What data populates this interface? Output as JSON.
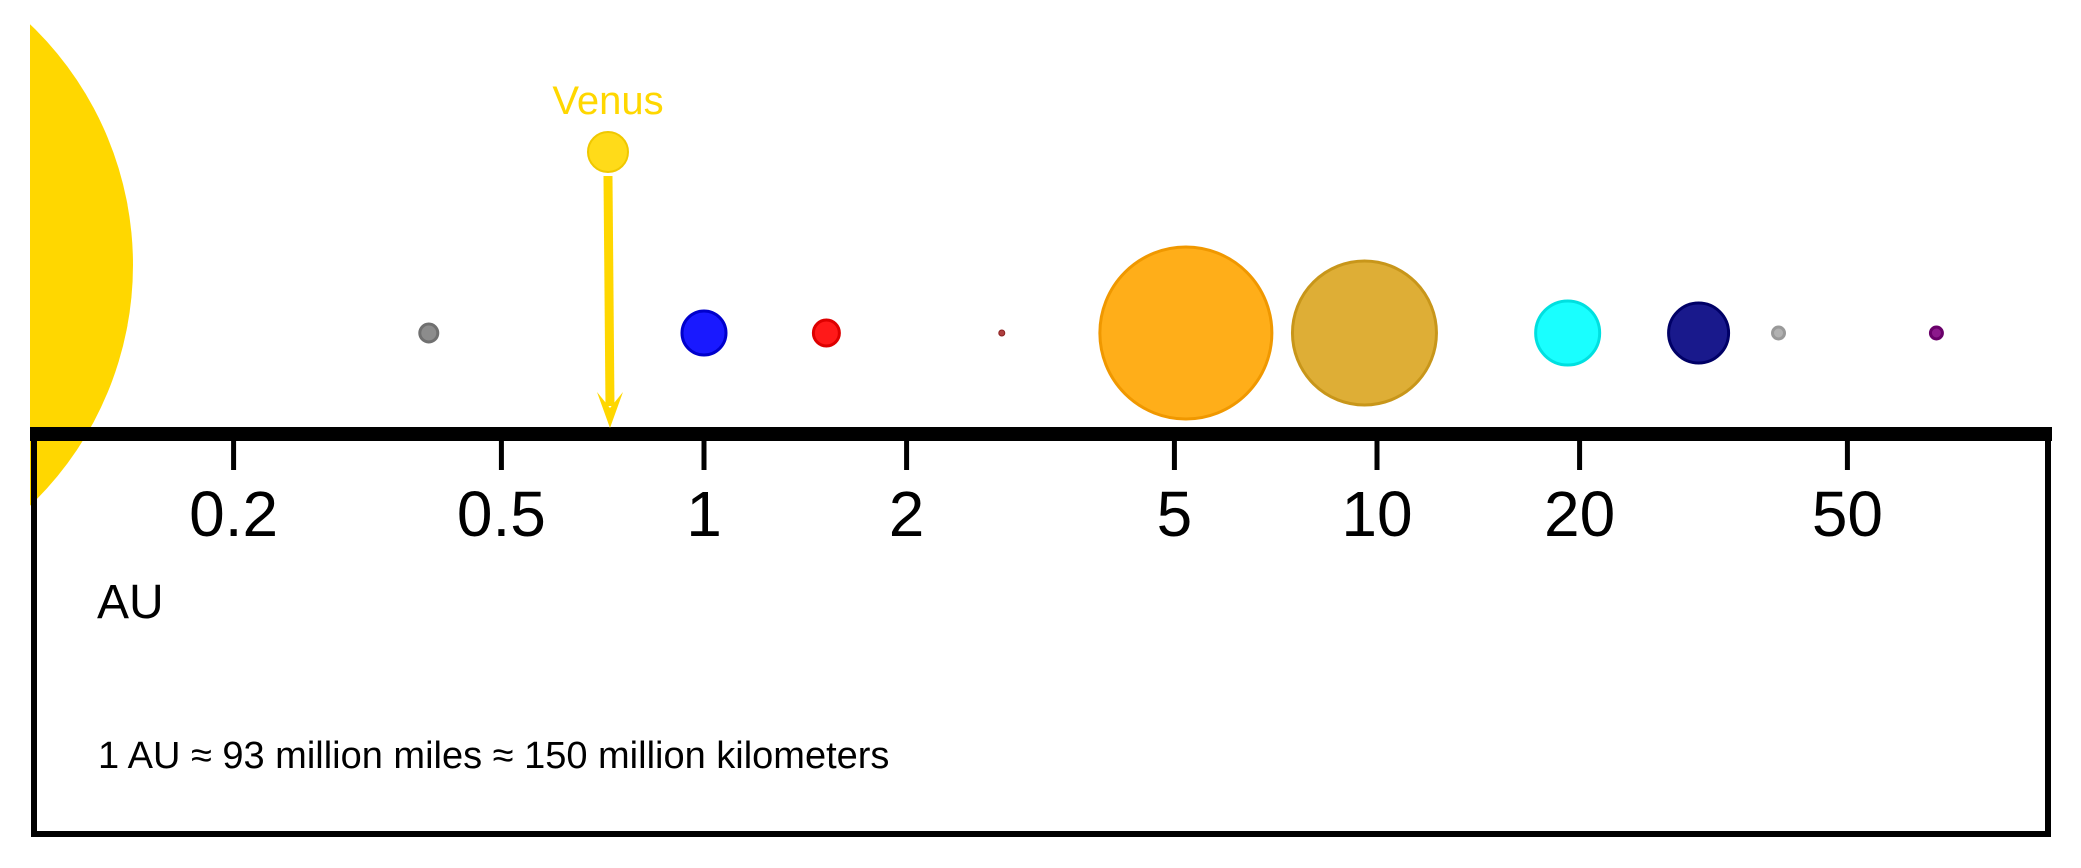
{
  "diagram": {
    "axis": {
      "scale": "log",
      "range_au": [
        0.1,
        90
      ],
      "ticks": [
        {
          "value": 0.2,
          "label": "0.2"
        },
        {
          "value": 0.5,
          "label": "0.5"
        },
        {
          "value": 1,
          "label": "1"
        },
        {
          "value": 2,
          "label": "2"
        },
        {
          "value": 5,
          "label": "5"
        },
        {
          "value": 10,
          "label": "10"
        },
        {
          "value": 20,
          "label": "20"
        },
        {
          "value": 50,
          "label": "50"
        }
      ],
      "unit_label": "AU"
    },
    "note": "1 AU ≈ 93 million miles ≈ 150 million kilometers",
    "sun": {
      "color": "#FFD700"
    },
    "bodies": [
      {
        "id": "mercury",
        "au": 0.39,
        "color": "#808080"
      },
      {
        "id": "venus",
        "au": 0.72,
        "color": "#FFD700",
        "label": "Venus",
        "highlighted": true
      },
      {
        "id": "earth",
        "au": 1.0,
        "color": "#0000FF"
      },
      {
        "id": "mars",
        "au": 1.52,
        "color": "#FF0000"
      },
      {
        "id": "ceres",
        "au": 2.77,
        "color": "#A52A2A"
      },
      {
        "id": "jupiter",
        "au": 5.2,
        "color": "#FFA500"
      },
      {
        "id": "saturn",
        "au": 9.58,
        "color": "#DAA520"
      },
      {
        "id": "uranus",
        "au": 19.2,
        "color": "#00FFFF"
      },
      {
        "id": "neptune",
        "au": 30.05,
        "color": "#000080"
      },
      {
        "id": "pluto",
        "au": 39.5,
        "color": "#A9A9A9"
      },
      {
        "id": "eris",
        "au": 67.8,
        "color": "#800080"
      }
    ]
  }
}
